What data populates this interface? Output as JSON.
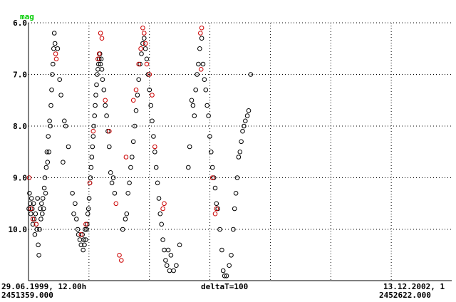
{
  "chart_data": {
    "type": "scatter",
    "ylabel": "mag",
    "y_inverted": true,
    "ylim": [
      6.0,
      11.0
    ],
    "xlim": [
      2451359.0,
      2452622.0
    ],
    "yticks": [
      "6.0",
      "7.0",
      "8.0",
      "9.0",
      "10.0"
    ],
    "grid": true,
    "x_start_date": "29.06.1999, 12.00h",
    "x_start_jd": "2451359.000",
    "x_end_date": "13.12.2002, 1",
    "x_end_jd": "2452622.000",
    "delta_label": "deltaT=100",
    "colors": {
      "axis": "#000000",
      "mag_label": "#00cc00",
      "series_a": "#000000",
      "series_b": "#cc0000"
    },
    "series": [
      {
        "color": "#000000",
        "points": [
          [
            2451360,
            9.6
          ],
          [
            2451362,
            9.3
          ],
          [
            2451364,
            9.5
          ],
          [
            2451366,
            9.7
          ],
          [
            2451368,
            9.4
          ],
          [
            2451370,
            9.6
          ],
          [
            2451372,
            9.9
          ],
          [
            2451374,
            9.5
          ],
          [
            2451376,
            9.8
          ],
          [
            2451378,
            10.1
          ],
          [
            2451380,
            9.7
          ],
          [
            2451382,
            9.9
          ],
          [
            2451384,
            10.0
          ],
          [
            2451386,
            9.4
          ],
          [
            2451388,
            10.3
          ],
          [
            2451390,
            10.5
          ],
          [
            2451392,
            10.0
          ],
          [
            2451394,
            9.6
          ],
          [
            2451396,
            9.8
          ],
          [
            2451398,
            9.5
          ],
          [
            2451400,
            9.7
          ],
          [
            2451402,
            9.4
          ],
          [
            2451404,
            9.6
          ],
          [
            2451406,
            9.2
          ],
          [
            2451408,
            9.0
          ],
          [
            2451410,
            9.3
          ],
          [
            2451412,
            8.8
          ],
          [
            2451414,
            8.5
          ],
          [
            2451416,
            8.7
          ],
          [
            2451418,
            8.2
          ],
          [
            2451420,
            8.5
          ],
          [
            2451422,
            7.9
          ],
          [
            2451424,
            8.0
          ],
          [
            2451426,
            7.6
          ],
          [
            2451428,
            7.3
          ],
          [
            2451430,
            7.0
          ],
          [
            2451432,
            6.8
          ],
          [
            2451434,
            6.5
          ],
          [
            2451436,
            6.2
          ],
          [
            2451438,
            6.4
          ],
          [
            2451446,
            6.5
          ],
          [
            2451452,
            7.1
          ],
          [
            2451456,
            7.4
          ],
          [
            2451466,
            7.9
          ],
          [
            2451470,
            8.0
          ],
          [
            2451478,
            8.4
          ],
          [
            2451462,
            8.7
          ],
          [
            2451490,
            9.3
          ],
          [
            2451494,
            9.7
          ],
          [
            2451498,
            9.5
          ],
          [
            2451502,
            9.8
          ],
          [
            2451506,
            10.0
          ],
          [
            2451508,
            10.1
          ],
          [
            2451512,
            10.2
          ],
          [
            2451516,
            10.3
          ],
          [
            2451520,
            10.1
          ],
          [
            2451522,
            10.4
          ],
          [
            2451524,
            10.2
          ],
          [
            2451526,
            10.3
          ],
          [
            2451528,
            10.0
          ],
          [
            2451530,
            10.2
          ],
          [
            2451532,
            10.0
          ],
          [
            2451534,
            9.9
          ],
          [
            2451536,
            9.7
          ],
          [
            2451538,
            9.6
          ],
          [
            2451540,
            9.4
          ],
          [
            2451542,
            9.1
          ],
          [
            2451544,
            9.0
          ],
          [
            2451546,
            8.8
          ],
          [
            2451548,
            8.6
          ],
          [
            2451550,
            8.4
          ],
          [
            2451552,
            8.2
          ],
          [
            2451554,
            8.0
          ],
          [
            2451556,
            7.8
          ],
          [
            2451558,
            7.6
          ],
          [
            2451560,
            7.4
          ],
          [
            2451562,
            7.2
          ],
          [
            2451564,
            7.0
          ],
          [
            2451566,
            6.9
          ],
          [
            2451568,
            6.8
          ],
          [
            2451570,
            6.7
          ],
          [
            2451572,
            6.6
          ],
          [
            2451574,
            6.8
          ],
          [
            2451576,
            6.7
          ],
          [
            2451578,
            6.9
          ],
          [
            2451580,
            7.1
          ],
          [
            2451584,
            7.3
          ],
          [
            2451588,
            7.6
          ],
          [
            2451592,
            7.8
          ],
          [
            2451596,
            8.1
          ],
          [
            2451600,
            8.4
          ],
          [
            2451604,
            8.9
          ],
          [
            2451608,
            9.1
          ],
          [
            2451612,
            9.0
          ],
          [
            2451616,
            9.3
          ],
          [
            2451640,
            10.0
          ],
          [
            2451648,
            9.8
          ],
          [
            2451652,
            9.7
          ],
          [
            2451656,
            9.3
          ],
          [
            2451660,
            9.1
          ],
          [
            2451664,
            8.8
          ],
          [
            2451668,
            8.6
          ],
          [
            2451672,
            8.3
          ],
          [
            2451676,
            8.0
          ],
          [
            2451680,
            7.7
          ],
          [
            2451684,
            7.4
          ],
          [
            2451688,
            7.1
          ],
          [
            2451692,
            6.8
          ],
          [
            2451696,
            6.6
          ],
          [
            2451700,
            6.4
          ],
          [
            2451704,
            6.3
          ],
          [
            2451708,
            6.5
          ],
          [
            2451712,
            6.7
          ],
          [
            2451716,
            7.0
          ],
          [
            2451720,
            7.3
          ],
          [
            2451724,
            7.6
          ],
          [
            2451728,
            7.9
          ],
          [
            2451732,
            8.2
          ],
          [
            2451736,
            8.5
          ],
          [
            2451740,
            8.8
          ],
          [
            2451744,
            9.1
          ],
          [
            2451748,
            9.4
          ],
          [
            2451752,
            9.7
          ],
          [
            2451756,
            9.9
          ],
          [
            2451760,
            10.2
          ],
          [
            2451764,
            10.4
          ],
          [
            2451768,
            10.6
          ],
          [
            2451772,
            10.7
          ],
          [
            2451776,
            10.4
          ],
          [
            2451780,
            10.8
          ],
          [
            2451784,
            10.5
          ],
          [
            2451792,
            10.8
          ],
          [
            2451800,
            10.7
          ],
          [
            2451810,
            10.3
          ],
          [
            2451836,
            8.8
          ],
          [
            2451840,
            8.4
          ],
          [
            2451846,
            7.5
          ],
          [
            2451850,
            7.6
          ],
          [
            2451854,
            7.8
          ],
          [
            2451858,
            7.3
          ],
          [
            2451862,
            7.0
          ],
          [
            2451866,
            6.8
          ],
          [
            2451870,
            6.5
          ],
          [
            2451876,
            6.3
          ],
          [
            2451880,
            6.8
          ],
          [
            2451884,
            7.1
          ],
          [
            2451888,
            7.3
          ],
          [
            2451892,
            7.6
          ],
          [
            2451896,
            7.8
          ],
          [
            2451900,
            8.2
          ],
          [
            2451904,
            8.5
          ],
          [
            2451908,
            8.8
          ],
          [
            2451912,
            9.0
          ],
          [
            2451916,
            9.2
          ],
          [
            2451920,
            9.5
          ],
          [
            2451924,
            9.6
          ],
          [
            2451930,
            10.0
          ],
          [
            2451936,
            10.4
          ],
          [
            2451940,
            10.8
          ],
          [
            2451944,
            10.9
          ],
          [
            2451950,
            10.9
          ],
          [
            2451958,
            10.7
          ],
          [
            2451964,
            10.5
          ],
          [
            2451970,
            10.0
          ],
          [
            2451974,
            9.6
          ],
          [
            2451978,
            9.3
          ],
          [
            2451982,
            9.0
          ],
          [
            2451986,
            8.6
          ],
          [
            2451990,
            8.5
          ],
          [
            2451994,
            8.3
          ],
          [
            2451998,
            8.1
          ],
          [
            2452002,
            8.0
          ],
          [
            2452006,
            7.9
          ],
          [
            2452012,
            7.8
          ],
          [
            2452016,
            7.7
          ],
          [
            2452022,
            7.0
          ]
        ]
      },
      {
        "color": "#cc0000",
        "points": [
          [
            2451361,
            9.0
          ],
          [
            2451366,
            9.6
          ],
          [
            2451372,
            9.8
          ],
          [
            2451382,
            9.9
          ],
          [
            2451440,
            6.6
          ],
          [
            2451442,
            6.7
          ],
          [
            2451516,
            10.1
          ],
          [
            2451530,
            9.9
          ],
          [
            2451542,
            9.1
          ],
          [
            2451552,
            8.1
          ],
          [
            2451566,
            6.7
          ],
          [
            2451570,
            6.6
          ],
          [
            2451574,
            6.2
          ],
          [
            2451578,
            6.3
          ],
          [
            2451588,
            7.5
          ],
          [
            2451600,
            8.1
          ],
          [
            2451620,
            9.5
          ],
          [
            2451630,
            10.5
          ],
          [
            2451636,
            10.6
          ],
          [
            2451650,
            8.6
          ],
          [
            2451672,
            7.5
          ],
          [
            2451680,
            7.3
          ],
          [
            2451688,
            6.8
          ],
          [
            2451694,
            6.5
          ],
          [
            2451700,
            6.1
          ],
          [
            2451704,
            6.2
          ],
          [
            2451708,
            6.4
          ],
          [
            2451712,
            6.8
          ],
          [
            2451720,
            7.0
          ],
          [
            2451728,
            7.4
          ],
          [
            2451736,
            8.4
          ],
          [
            2451760,
            9.6
          ],
          [
            2451764,
            9.5
          ],
          [
            2451872,
            6.2
          ],
          [
            2451876,
            6.1
          ],
          [
            2451874,
            6.9
          ],
          [
            2451908,
            9.0
          ],
          [
            2451916,
            9.7
          ],
          [
            2451920,
            9.6
          ]
        ]
      }
    ]
  }
}
